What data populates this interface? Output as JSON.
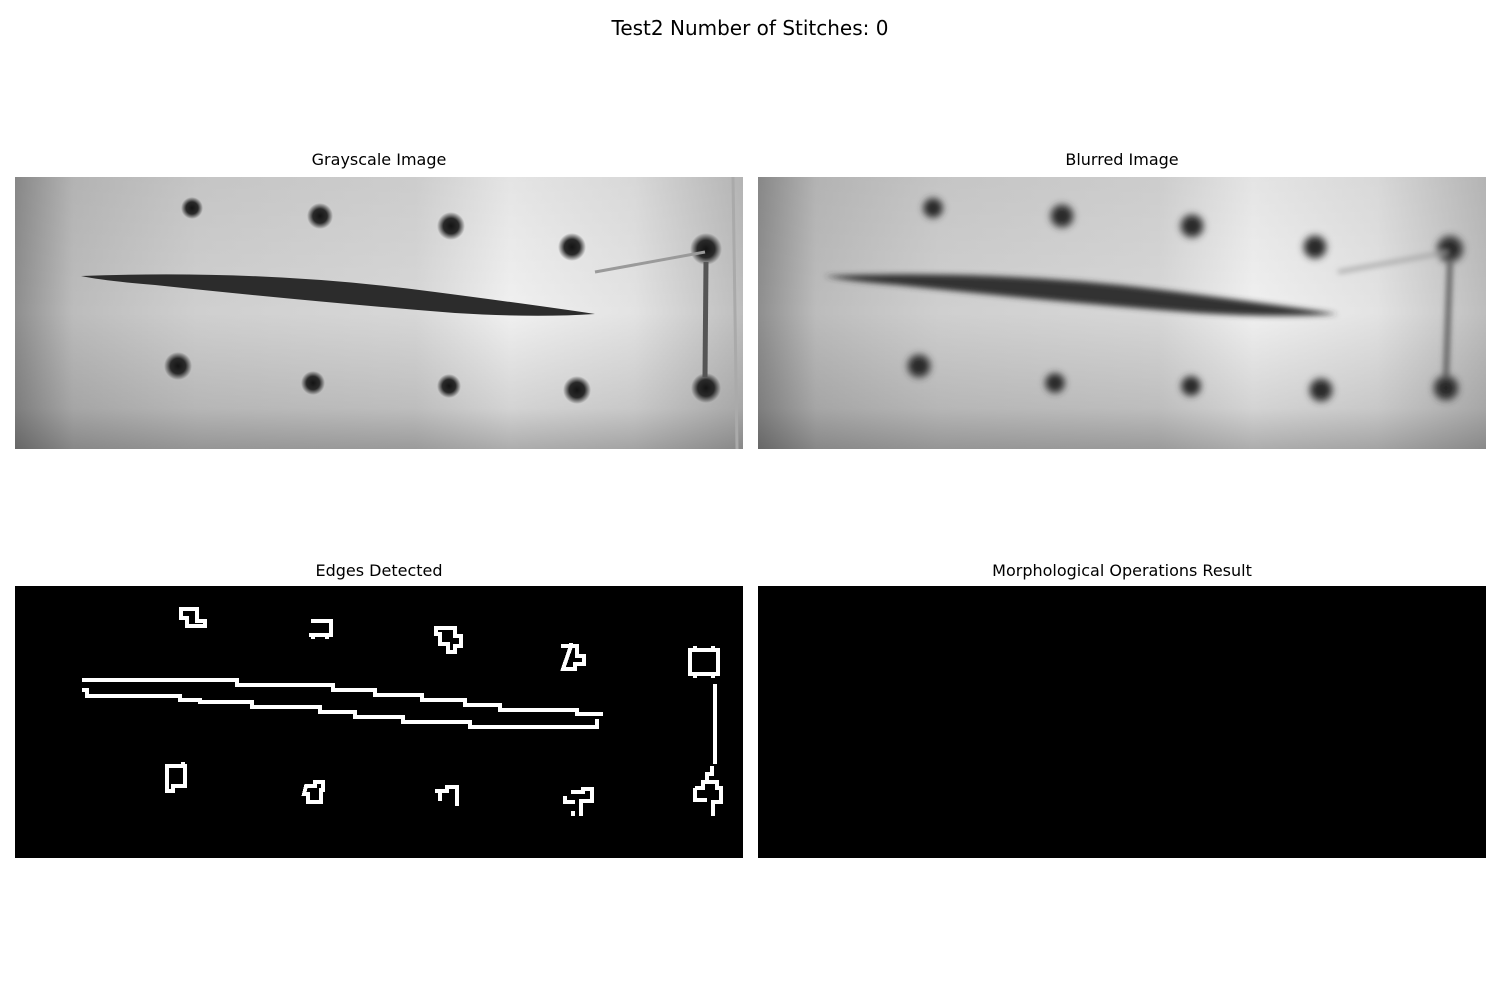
{
  "figure": {
    "suptitle": "Test2 Number of Stitches: 0"
  },
  "panels": {
    "grayscale": {
      "title": "Grayscale Image"
    },
    "blurred": {
      "title": "Blurred Image"
    },
    "edges": {
      "title": "Edges Detected"
    },
    "morph": {
      "title": "Morphological Operations Result"
    }
  },
  "colors": {
    "background": "#ffffff",
    "edge_line": "#ffffff",
    "edge_background": "#000000",
    "dot": "#1e1e1e",
    "tissue_light": "#f2f2f2",
    "tissue_dark": "#8f8f8f"
  }
}
